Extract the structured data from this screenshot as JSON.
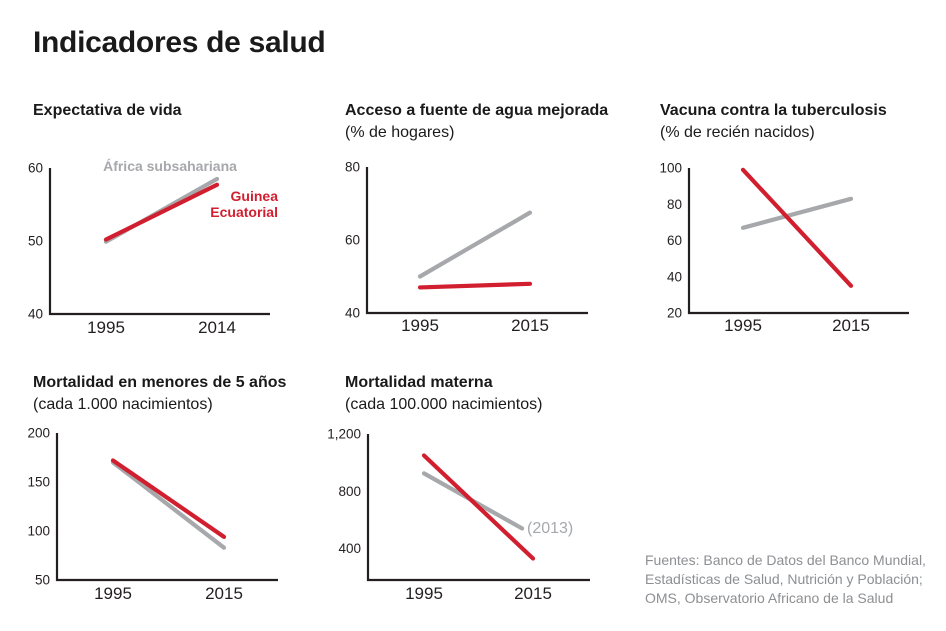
{
  "page": {
    "title": "Indicadores de salud"
  },
  "colors": {
    "red": "#d11f2f",
    "gray": "#a6a8ab",
    "axis": "#231f20",
    "text": "#1a1a1a",
    "source": "#8d8f92"
  },
  "legend": {
    "gray_series": "África subsahariana",
    "red_series": "Guinea Ecuatorial"
  },
  "source_note": {
    "lines": [
      "Fuentes: Banco de Datos del Banco Mundial,",
      "Estadísticas de Salud, Nutrición y Población;",
      "OMS, Observatorio Africano de la Salud"
    ]
  },
  "chart_data": [
    {
      "type": "line",
      "title": "Expectativa de vida",
      "subtitle": "",
      "x_range": [
        1995,
        2014
      ],
      "x_tick_labels": [
        "1995",
        "2014"
      ],
      "ylim": [
        40,
        60
      ],
      "yticks": [
        {
          "label": "60",
          "value": 60
        },
        {
          "label": "50",
          "value": 50
        },
        {
          "label": "40",
          "value": 40
        }
      ],
      "series": [
        {
          "name": "África subsahariana",
          "color": "gray",
          "points": [
            [
              1995,
              49.9
            ],
            [
              2014,
              58.5
            ]
          ]
        },
        {
          "name": "Guinea Ecuatorial",
          "color": "red",
          "points": [
            [
              1995,
              50.2
            ],
            [
              2014,
              57.7
            ]
          ]
        }
      ],
      "annotations": [
        {
          "text": "África subsahariana",
          "color": "gray",
          "bold": true
        },
        {
          "text": "Guinea",
          "color": "red",
          "bold": true
        },
        {
          "text": "Ecuatorial",
          "color": "red",
          "bold": true
        }
      ]
    },
    {
      "type": "line",
      "title": "Acceso a fuente de agua mejorada",
      "subtitle": "(% de hogares)",
      "x_range": [
        1995,
        2015
      ],
      "x_tick_labels": [
        "1995",
        "2015"
      ],
      "ylim": [
        40,
        80
      ],
      "yticks": [
        {
          "label": "80",
          "value": 80
        },
        {
          "label": "60",
          "value": 60
        },
        {
          "label": "40",
          "value": 40
        }
      ],
      "series": [
        {
          "name": "África subsahariana",
          "color": "gray",
          "points": [
            [
              1995,
              50
            ],
            [
              2015,
              67.5
            ]
          ]
        },
        {
          "name": "Guinea Ecuatorial",
          "color": "red",
          "points": [
            [
              1995,
              47
            ],
            [
              2015,
              48
            ]
          ]
        }
      ],
      "annotations": []
    },
    {
      "type": "line",
      "title": "Vacuna contra la tuberculosis",
      "subtitle": "(% de recién nacidos)",
      "x_range": [
        1995,
        2015
      ],
      "x_tick_labels": [
        "1995",
        "2015"
      ],
      "ylim": [
        20,
        100
      ],
      "yticks": [
        {
          "label": "100",
          "value": 100
        },
        {
          "label": "80",
          "value": 80
        },
        {
          "label": "60",
          "value": 60
        },
        {
          "label": "40",
          "value": 40
        },
        {
          "label": "20",
          "value": 20
        }
      ],
      "series": [
        {
          "name": "África subsahariana",
          "color": "gray",
          "points": [
            [
              1995,
              67
            ],
            [
              2015,
              83
            ]
          ]
        },
        {
          "name": "Guinea Ecuatorial",
          "color": "red",
          "points": [
            [
              1995,
              99
            ],
            [
              2015,
              35
            ]
          ]
        }
      ],
      "annotations": []
    },
    {
      "type": "line",
      "title": "Mortalidad en menores de 5 años",
      "subtitle": "(cada 1.000 nacimientos)",
      "x_range": [
        1995,
        2015
      ],
      "x_tick_labels": [
        "1995",
        "2015"
      ],
      "ylim": [
        50,
        200
      ],
      "yticks": [
        {
          "label": "200",
          "value": 200
        },
        {
          "label": "150",
          "value": 150
        },
        {
          "label": "100",
          "value": 100
        },
        {
          "label": "50",
          "value": 50
        }
      ],
      "series": [
        {
          "name": "África subsahariana",
          "color": "gray",
          "points": [
            [
              1995,
              170
            ],
            [
              2015,
              83
            ]
          ]
        },
        {
          "name": "Guinea Ecuatorial",
          "color": "red",
          "points": [
            [
              1995,
              172
            ],
            [
              2015,
              94
            ]
          ]
        }
      ],
      "annotations": []
    },
    {
      "type": "line",
      "title": "Mortalidad materna",
      "subtitle": "(cada 100.000 nacimientos)",
      "x_range": [
        1995,
        2015
      ],
      "x_tick_labels": [
        "1995",
        "2015"
      ],
      "ylim": [
        180,
        1200
      ],
      "yticks": [
        {
          "label": "1,200",
          "value": 1200
        },
        {
          "label": "800",
          "value": 800
        },
        {
          "label": "400",
          "value": 400
        }
      ],
      "series": [
        {
          "name": "África subsahariana",
          "color": "gray",
          "points": [
            [
              1995,
              925
            ],
            [
              2013,
              540
            ]
          ]
        },
        {
          "name": "Guinea Ecuatorial",
          "color": "red",
          "points": [
            [
              1995,
              1050
            ],
            [
              2015,
              330
            ]
          ]
        }
      ],
      "annotations": [
        {
          "text": "(2013)",
          "color": "gray",
          "bold": false
        }
      ]
    }
  ]
}
